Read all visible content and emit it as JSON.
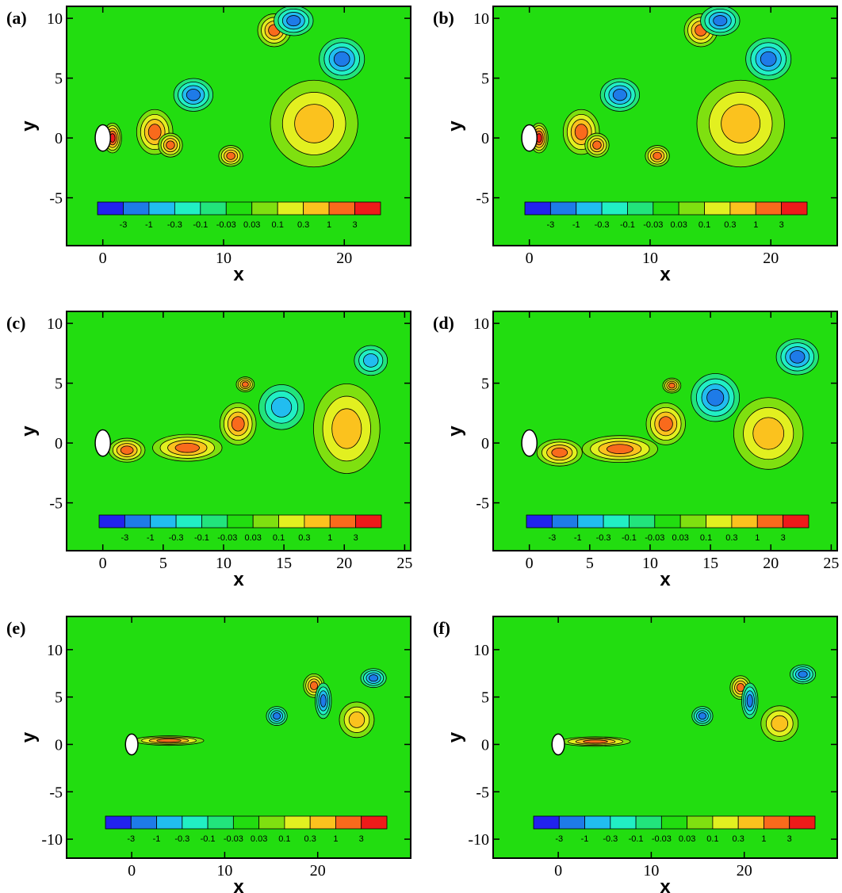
{
  "palette": {
    "background": "#22dd10",
    "levels": [
      "#2222ee",
      "#1e7be8",
      "#21bdf0",
      "#21efc4",
      "#22e47c",
      "#22dd10",
      "#7fe010",
      "#e2f020",
      "#fbc21e",
      "#f96a1c",
      "#ee1a1a"
    ],
    "body": "#ffffff"
  },
  "chart_data": [
    {
      "panel": "(a)",
      "type": "heatmap",
      "xlabel": "x",
      "ylabel": "y",
      "xlim": [
        -3,
        25.5
      ],
      "ylim": [
        -9,
        11
      ],
      "xticks": [
        0,
        10,
        20
      ],
      "yticks": [
        -5,
        0,
        5,
        10
      ],
      "colorbar": {
        "labels": [
          "-3",
          "-1",
          "-0.3",
          "-0.1",
          "-0.03",
          "0.03",
          "0.1",
          "0.3",
          "1",
          "3"
        ]
      },
      "body": {
        "cx": 0,
        "cy": 0,
        "rx": 0.5,
        "ry": 1.1
      },
      "vortices": [
        {
          "x": 0.8,
          "y": 0,
          "level": 10,
          "rx": 0.6,
          "ry": 1
        },
        {
          "x": 4.3,
          "y": 0.5,
          "level": 9,
          "rx": 1.2,
          "ry": 1.5
        },
        {
          "x": 5.6,
          "y": -0.6,
          "level": 9,
          "rx": 0.8,
          "ry": 0.8
        },
        {
          "x": 7.5,
          "y": 3.6,
          "level": 1,
          "rx": 1.3,
          "ry": 1.1
        },
        {
          "x": 10.6,
          "y": -1.5,
          "level": 9,
          "rx": 0.8,
          "ry": 0.7
        },
        {
          "x": 14.2,
          "y": 9,
          "level": 9,
          "rx": 1.1,
          "ry": 1.1
        },
        {
          "x": 15.8,
          "y": 9.8,
          "level": 1,
          "rx": 1.3,
          "ry": 1
        },
        {
          "x": 19.8,
          "y": 6.6,
          "level": 1,
          "rx": 1.5,
          "ry": 1.4
        },
        {
          "x": 17.5,
          "y": 1.2,
          "level": 8,
          "rx": 2.9,
          "ry": 2.9
        }
      ]
    },
    {
      "panel": "(b)",
      "type": "heatmap",
      "xlabel": "x",
      "ylabel": "y",
      "xlim": [
        -3,
        25.5
      ],
      "ylim": [
        -9,
        11
      ],
      "xticks": [
        0,
        10,
        20
      ],
      "yticks": [
        -5,
        0,
        5,
        10
      ],
      "colorbar": {
        "labels": [
          "-3",
          "-1",
          "-0.3",
          "-0.1",
          "-0.03",
          "0.03",
          "0.1",
          "0.3",
          "1",
          "3"
        ]
      },
      "body": {
        "cx": 0,
        "cy": 0,
        "rx": 0.5,
        "ry": 1.1
      },
      "vortices": [
        {
          "x": 0.8,
          "y": 0,
          "level": 10,
          "rx": 0.6,
          "ry": 1
        },
        {
          "x": 4.3,
          "y": 0.5,
          "level": 9,
          "rx": 1.2,
          "ry": 1.5
        },
        {
          "x": 5.6,
          "y": -0.6,
          "level": 9,
          "rx": 0.8,
          "ry": 0.8
        },
        {
          "x": 7.5,
          "y": 3.6,
          "level": 1,
          "rx": 1.3,
          "ry": 1.1
        },
        {
          "x": 10.6,
          "y": -1.5,
          "level": 9,
          "rx": 0.8,
          "ry": 0.7
        },
        {
          "x": 14.2,
          "y": 9,
          "level": 9,
          "rx": 1.1,
          "ry": 1.1
        },
        {
          "x": 15.8,
          "y": 9.8,
          "level": 1,
          "rx": 1.3,
          "ry": 1
        },
        {
          "x": 19.8,
          "y": 6.6,
          "level": 1,
          "rx": 1.5,
          "ry": 1.4
        },
        {
          "x": 17.5,
          "y": 1.2,
          "level": 8,
          "rx": 2.9,
          "ry": 2.9
        }
      ]
    },
    {
      "panel": "(c)",
      "type": "heatmap",
      "xlabel": "x",
      "ylabel": "y",
      "xlim": [
        -3,
        25.5
      ],
      "ylim": [
        -9,
        11
      ],
      "xticks": [
        0,
        5,
        10,
        15,
        20,
        25
      ],
      "yticks": [
        -5,
        0,
        5,
        10
      ],
      "colorbar": {
        "labels": [
          "-3",
          "-1",
          "-0.3",
          "-0.1",
          "-0.03",
          "0.03",
          "0.1",
          "0.3",
          "1",
          "3"
        ]
      },
      "body": {
        "cx": 0,
        "cy": 0,
        "rx": 0.5,
        "ry": 1.1
      },
      "vortices": [
        {
          "x": 2,
          "y": -0.6,
          "level": 9,
          "rx": 1.2,
          "ry": 0.8
        },
        {
          "x": 7,
          "y": -0.4,
          "level": 9,
          "rx": 2.3,
          "ry": 0.9
        },
        {
          "x": 11.2,
          "y": 1.6,
          "level": 9,
          "rx": 1.2,
          "ry": 1.4
        },
        {
          "x": 11.8,
          "y": 4.9,
          "level": 9,
          "rx": 0.6,
          "ry": 0.5
        },
        {
          "x": 14.8,
          "y": 3,
          "level": 2,
          "rx": 1.5,
          "ry": 1.5
        },
        {
          "x": 22.2,
          "y": 6.9,
          "level": 2,
          "rx": 1.1,
          "ry": 1
        },
        {
          "x": 20.2,
          "y": 1.2,
          "level": 8,
          "rx": 2.2,
          "ry": 3
        }
      ]
    },
    {
      "panel": "(d)",
      "type": "heatmap",
      "xlabel": "x",
      "ylabel": "y",
      "xlim": [
        -3,
        25.5
      ],
      "ylim": [
        -9,
        11
      ],
      "xticks": [
        0,
        5,
        10,
        15,
        20,
        25
      ],
      "yticks": [
        -5,
        0,
        5,
        10
      ],
      "colorbar": {
        "labels": [
          "-3",
          "-1",
          "-0.3",
          "-0.1",
          "-0.03",
          "0.03",
          "0.1",
          "0.3",
          "1",
          "3"
        ]
      },
      "body": {
        "cx": 0,
        "cy": 0,
        "rx": 0.5,
        "ry": 1.1
      },
      "vortices": [
        {
          "x": 2.5,
          "y": -0.8,
          "level": 9,
          "rx": 1.5,
          "ry": 0.9
        },
        {
          "x": 7.5,
          "y": -0.5,
          "level": 9,
          "rx": 2.5,
          "ry": 0.9
        },
        {
          "x": 11.3,
          "y": 1.6,
          "level": 9,
          "rx": 1.3,
          "ry": 1.4
        },
        {
          "x": 11.8,
          "y": 4.8,
          "level": 9,
          "rx": 0.6,
          "ry": 0.5
        },
        {
          "x": 15.4,
          "y": 3.8,
          "level": 1,
          "rx": 1.6,
          "ry": 1.6
        },
        {
          "x": 22.2,
          "y": 7.2,
          "level": 1,
          "rx": 1.4,
          "ry": 1.2
        },
        {
          "x": 19.8,
          "y": 0.8,
          "level": 8,
          "rx": 2.3,
          "ry": 2.4
        }
      ]
    },
    {
      "panel": "(e)",
      "type": "heatmap",
      "xlabel": "x",
      "ylabel": "y",
      "xlim": [
        -7,
        30
      ],
      "ylim": [
        -12,
        13.5
      ],
      "xticks": [
        0,
        10,
        20
      ],
      "yticks": [
        -10,
        -5,
        0,
        5,
        10
      ],
      "colorbar": {
        "labels": [
          "-3",
          "-1",
          "-0.3",
          "-0.1",
          "-0.03",
          "0.03",
          "0.1",
          "0.3",
          "1",
          "3"
        ]
      },
      "body": {
        "cx": 0,
        "cy": 0,
        "rx": 0.5,
        "ry": 1.1
      },
      "vortices": [
        {
          "x": 4,
          "y": 0.4,
          "level": 9,
          "rx": 3,
          "ry": 0.4
        },
        {
          "x": 15.6,
          "y": 3,
          "level": 1,
          "rx": 0.9,
          "ry": 0.8
        },
        {
          "x": 19.6,
          "y": 6.2,
          "level": 9,
          "rx": 0.9,
          "ry": 1
        },
        {
          "x": 20.6,
          "y": 4.6,
          "level": 1,
          "rx": 0.7,
          "ry": 1.5
        },
        {
          "x": 26,
          "y": 7,
          "level": 1,
          "rx": 1.1,
          "ry": 0.8
        },
        {
          "x": 24.2,
          "y": 2.6,
          "level": 8,
          "rx": 1.5,
          "ry": 1.5
        }
      ]
    },
    {
      "panel": "(f)",
      "type": "heatmap",
      "xlabel": "x",
      "ylabel": "y",
      "xlim": [
        -7,
        30
      ],
      "ylim": [
        -12,
        13.5
      ],
      "xticks": [
        0,
        10,
        20
      ],
      "yticks": [
        -10,
        -5,
        0,
        5,
        10
      ],
      "colorbar": {
        "labels": [
          "-3",
          "-1",
          "-0.3",
          "-0.1",
          "-0.03",
          "0.03",
          "0.1",
          "0.3",
          "1",
          "3"
        ]
      },
      "body": {
        "cx": 0,
        "cy": 0,
        "rx": 0.5,
        "ry": 1.1
      },
      "vortices": [
        {
          "x": 4,
          "y": 0.3,
          "level": 9,
          "rx": 3,
          "ry": 0.4
        },
        {
          "x": 15.5,
          "y": 3,
          "level": 1,
          "rx": 0.9,
          "ry": 0.8
        },
        {
          "x": 19.6,
          "y": 6,
          "level": 9,
          "rx": 0.9,
          "ry": 1
        },
        {
          "x": 20.6,
          "y": 4.6,
          "level": 1,
          "rx": 0.7,
          "ry": 1.5
        },
        {
          "x": 26.3,
          "y": 7.4,
          "level": 1,
          "rx": 1.1,
          "ry": 0.8
        },
        {
          "x": 23.8,
          "y": 2.2,
          "level": 8,
          "rx": 1.6,
          "ry": 1.5
        }
      ]
    }
  ]
}
